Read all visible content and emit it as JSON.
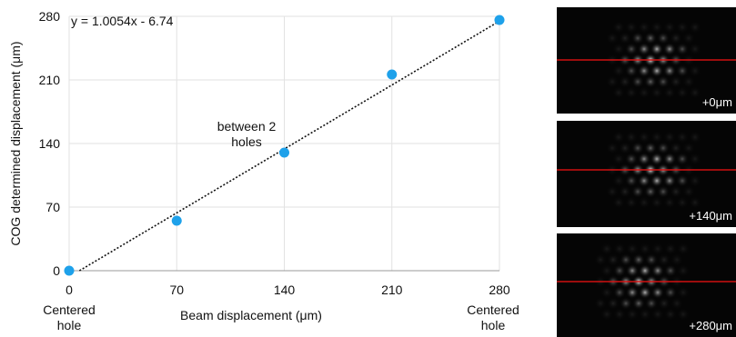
{
  "chart_data": {
    "type": "scatter",
    "x_label": "Beam displacement (μm)",
    "y_label": "COG determined displacement (μm)",
    "x": [
      0,
      70,
      140,
      210,
      280
    ],
    "values": [
      0,
      55,
      130,
      216,
      276
    ],
    "color": "#1ea1ea",
    "xlim": [
      0,
      280
    ],
    "ylim": [
      0,
      280
    ],
    "xticks": [
      0,
      70,
      140,
      210,
      280
    ],
    "yticks": [
      0,
      70,
      140,
      210,
      280
    ],
    "grid": true,
    "trendline": {
      "label": "y = 1.0054x - 6.74",
      "slope": 1.0054,
      "intercept": -6.74
    },
    "annotations": [
      "between 2 holes",
      "Centered hole",
      "Centered hole"
    ]
  },
  "panels": [
    {
      "label": "+0μm"
    },
    {
      "label": "+140μm"
    },
    {
      "label": "+280μm"
    }
  ]
}
